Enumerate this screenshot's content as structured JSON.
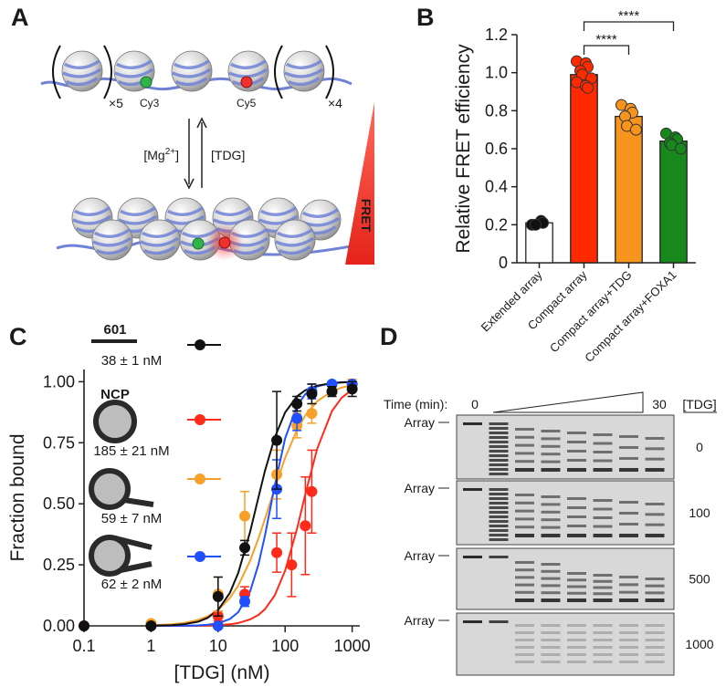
{
  "panel_labels": [
    "A",
    "B",
    "C",
    "D"
  ],
  "diagram": {
    "repeat_left": "×5",
    "repeat_right": "×4",
    "donor": "Cy3",
    "acceptor": "Cy5",
    "forward": {
      "pre": "[Mg",
      "sup": "2+",
      "post": "]"
    },
    "reverse": "[TDG]",
    "gradient_label": "FRET"
  },
  "chart_data": [
    {
      "type": "bar",
      "ylabel": "Relative FRET efficiency",
      "categories": [
        "Extended array",
        "Compact array",
        "Compact array+TDG",
        "Compact array+FOXA1"
      ],
      "values": [
        0.21,
        0.99,
        0.77,
        0.64
      ],
      "colors": [
        "#ffffff",
        "#ff2a00",
        "#f7941d",
        "#16881c"
      ],
      "point_colors": [
        "#111111",
        "#ff2a00",
        "#f7941d",
        "#16881c"
      ],
      "points": [
        [
          0.2,
          0.22,
          0.21,
          0.2
        ],
        [
          1.06,
          1.05,
          1.03,
          1.01,
          0.99,
          0.97,
          0.95,
          0.93,
          0.92
        ],
        [
          0.83,
          0.81,
          0.79,
          0.77,
          0.72,
          0.7
        ],
        [
          0.68,
          0.66,
          0.65,
          0.63,
          0.62,
          0.6
        ]
      ],
      "ylim": [
        0,
        1.2
      ],
      "yticks": [
        0,
        0.2,
        0.4,
        0.6,
        0.8,
        {
          "value": 1,
          "label": "1.0"
        },
        1.2
      ],
      "significance": [
        {
          "pair": [
            1,
            2
          ],
          "label": "****"
        },
        {
          "pair": [
            1,
            3
          ],
          "label": "****"
        }
      ]
    },
    {
      "type": "scatter",
      "xlabel": "[TDG] (nM)",
      "ylabel": "Fraction bound",
      "log_x": true,
      "xlim": [
        0.1,
        1300
      ],
      "xticks": [
        0.1,
        1,
        10,
        100,
        1000
      ],
      "ylim": [
        0,
        1.05
      ],
      "yticks": [
        {
          "value": 0,
          "label": "0.00"
        },
        {
          "value": 0.25,
          "label": "0.25"
        },
        {
          "value": 0.5,
          "label": "0.50"
        },
        {
          "value": 0.75,
          "label": "0.75"
        },
        {
          "value": 1,
          "label": "1.00"
        }
      ],
      "fit_x": [
        1,
        2,
        3,
        5,
        7,
        10,
        15,
        20,
        30,
        40,
        50,
        70,
        100,
        150,
        200,
        300,
        500,
        700,
        1000
      ],
      "series": [
        {
          "name": "601",
          "kd_label": "38 ± 1 nM",
          "color": "#111111",
          "x": [
            0.1,
            1,
            10,
            25,
            75,
            150,
            250,
            500,
            1000
          ],
          "values": [
            0,
            0,
            0.12,
            0.32,
            0.76,
            0.91,
            0.95,
            0.96,
            0.97
          ],
          "errors": [
            0,
            0,
            0.08,
            0.03,
            0.2,
            0.03,
            0.04,
            0.02,
            0.03
          ],
          "fit_y": [
            0.0007,
            0.0028,
            0.0062,
            0.017,
            0.033,
            0.065,
            0.135,
            0.217,
            0.384,
            0.526,
            0.634,
            0.772,
            0.874,
            0.94,
            0.965,
            0.984,
            0.994,
            0.997,
            0.999
          ]
        },
        {
          "name": "NCP",
          "kd_label": "185 ± 21 nM",
          "color": "#ff2a1a",
          "x": [
            0.1,
            1,
            10,
            25,
            75,
            125,
            200,
            250,
            1000
          ],
          "values": [
            0,
            0,
            0.04,
            0.13,
            0.3,
            0.25,
            0.41,
            0.55,
            0.99
          ],
          "errors": [
            0,
            0,
            0.02,
            0.03,
            0.08,
            0.13,
            0.2,
            0.17,
            0.02
          ],
          "fit_y": [
            0,
            0.0001,
            0.0003,
            0.0007,
            0.0014,
            0.003,
            0.0065,
            0.0116,
            0.026,
            0.045,
            0.068,
            0.125,
            0.226,
            0.397,
            0.539,
            0.725,
            0.88,
            0.935,
            0.967
          ]
        },
        {
          "kd_label": "59 ± 7 nM",
          "color": "#f7a02a",
          "x": [
            1,
            10,
            25,
            75,
            150,
            250,
            1000
          ],
          "values": [
            0.01,
            0.13,
            0.45,
            0.62,
            0.82,
            0.87,
            0.99
          ],
          "errors": [
            0.01,
            0.07,
            0.1,
            0.1,
            0.05,
            0.04,
            0.02
          ],
          "fit_y": [
            0.0022,
            0.0062,
            0.0113,
            0.024,
            0.039,
            0.065,
            0.114,
            0.165,
            0.266,
            0.358,
            0.438,
            0.564,
            0.688,
            0.802,
            0.862,
            0.92,
            0.961,
            0.976,
            0.986
          ]
        },
        {
          "kd_label": "62 ± 2 nM",
          "color": "#1f4fff",
          "x": [
            10,
            25,
            75,
            150,
            250,
            500,
            1000
          ],
          "values": [
            0,
            0.1,
            0.56,
            0.85,
            0.96,
            0.99,
            0.99
          ],
          "errors": [
            0.01,
            0.02,
            0.12,
            0.05,
            0.03,
            0.01,
            0.01
          ],
          "fit_y": [
            0,
            0.0002,
            0.0005,
            0.0018,
            0.0043,
            0.0103,
            0.028,
            0.056,
            0.14,
            0.251,
            0.369,
            0.575,
            0.768,
            0.901,
            0.949,
            0.981,
            0.995,
            0.998,
            0.999
          ]
        }
      ]
    }
  ],
  "gel": {
    "time_label": "Time (min):",
    "time_start": 0,
    "time_end": 30,
    "condition_header": "[TDG]",
    "rows": [
      {
        "band_label": "Array",
        "condition": 0
      },
      {
        "band_label": "Array",
        "condition": 100
      },
      {
        "band_label": "Array",
        "condition": 500
      },
      {
        "band_label": "Array",
        "condition": 1000
      }
    ]
  }
}
